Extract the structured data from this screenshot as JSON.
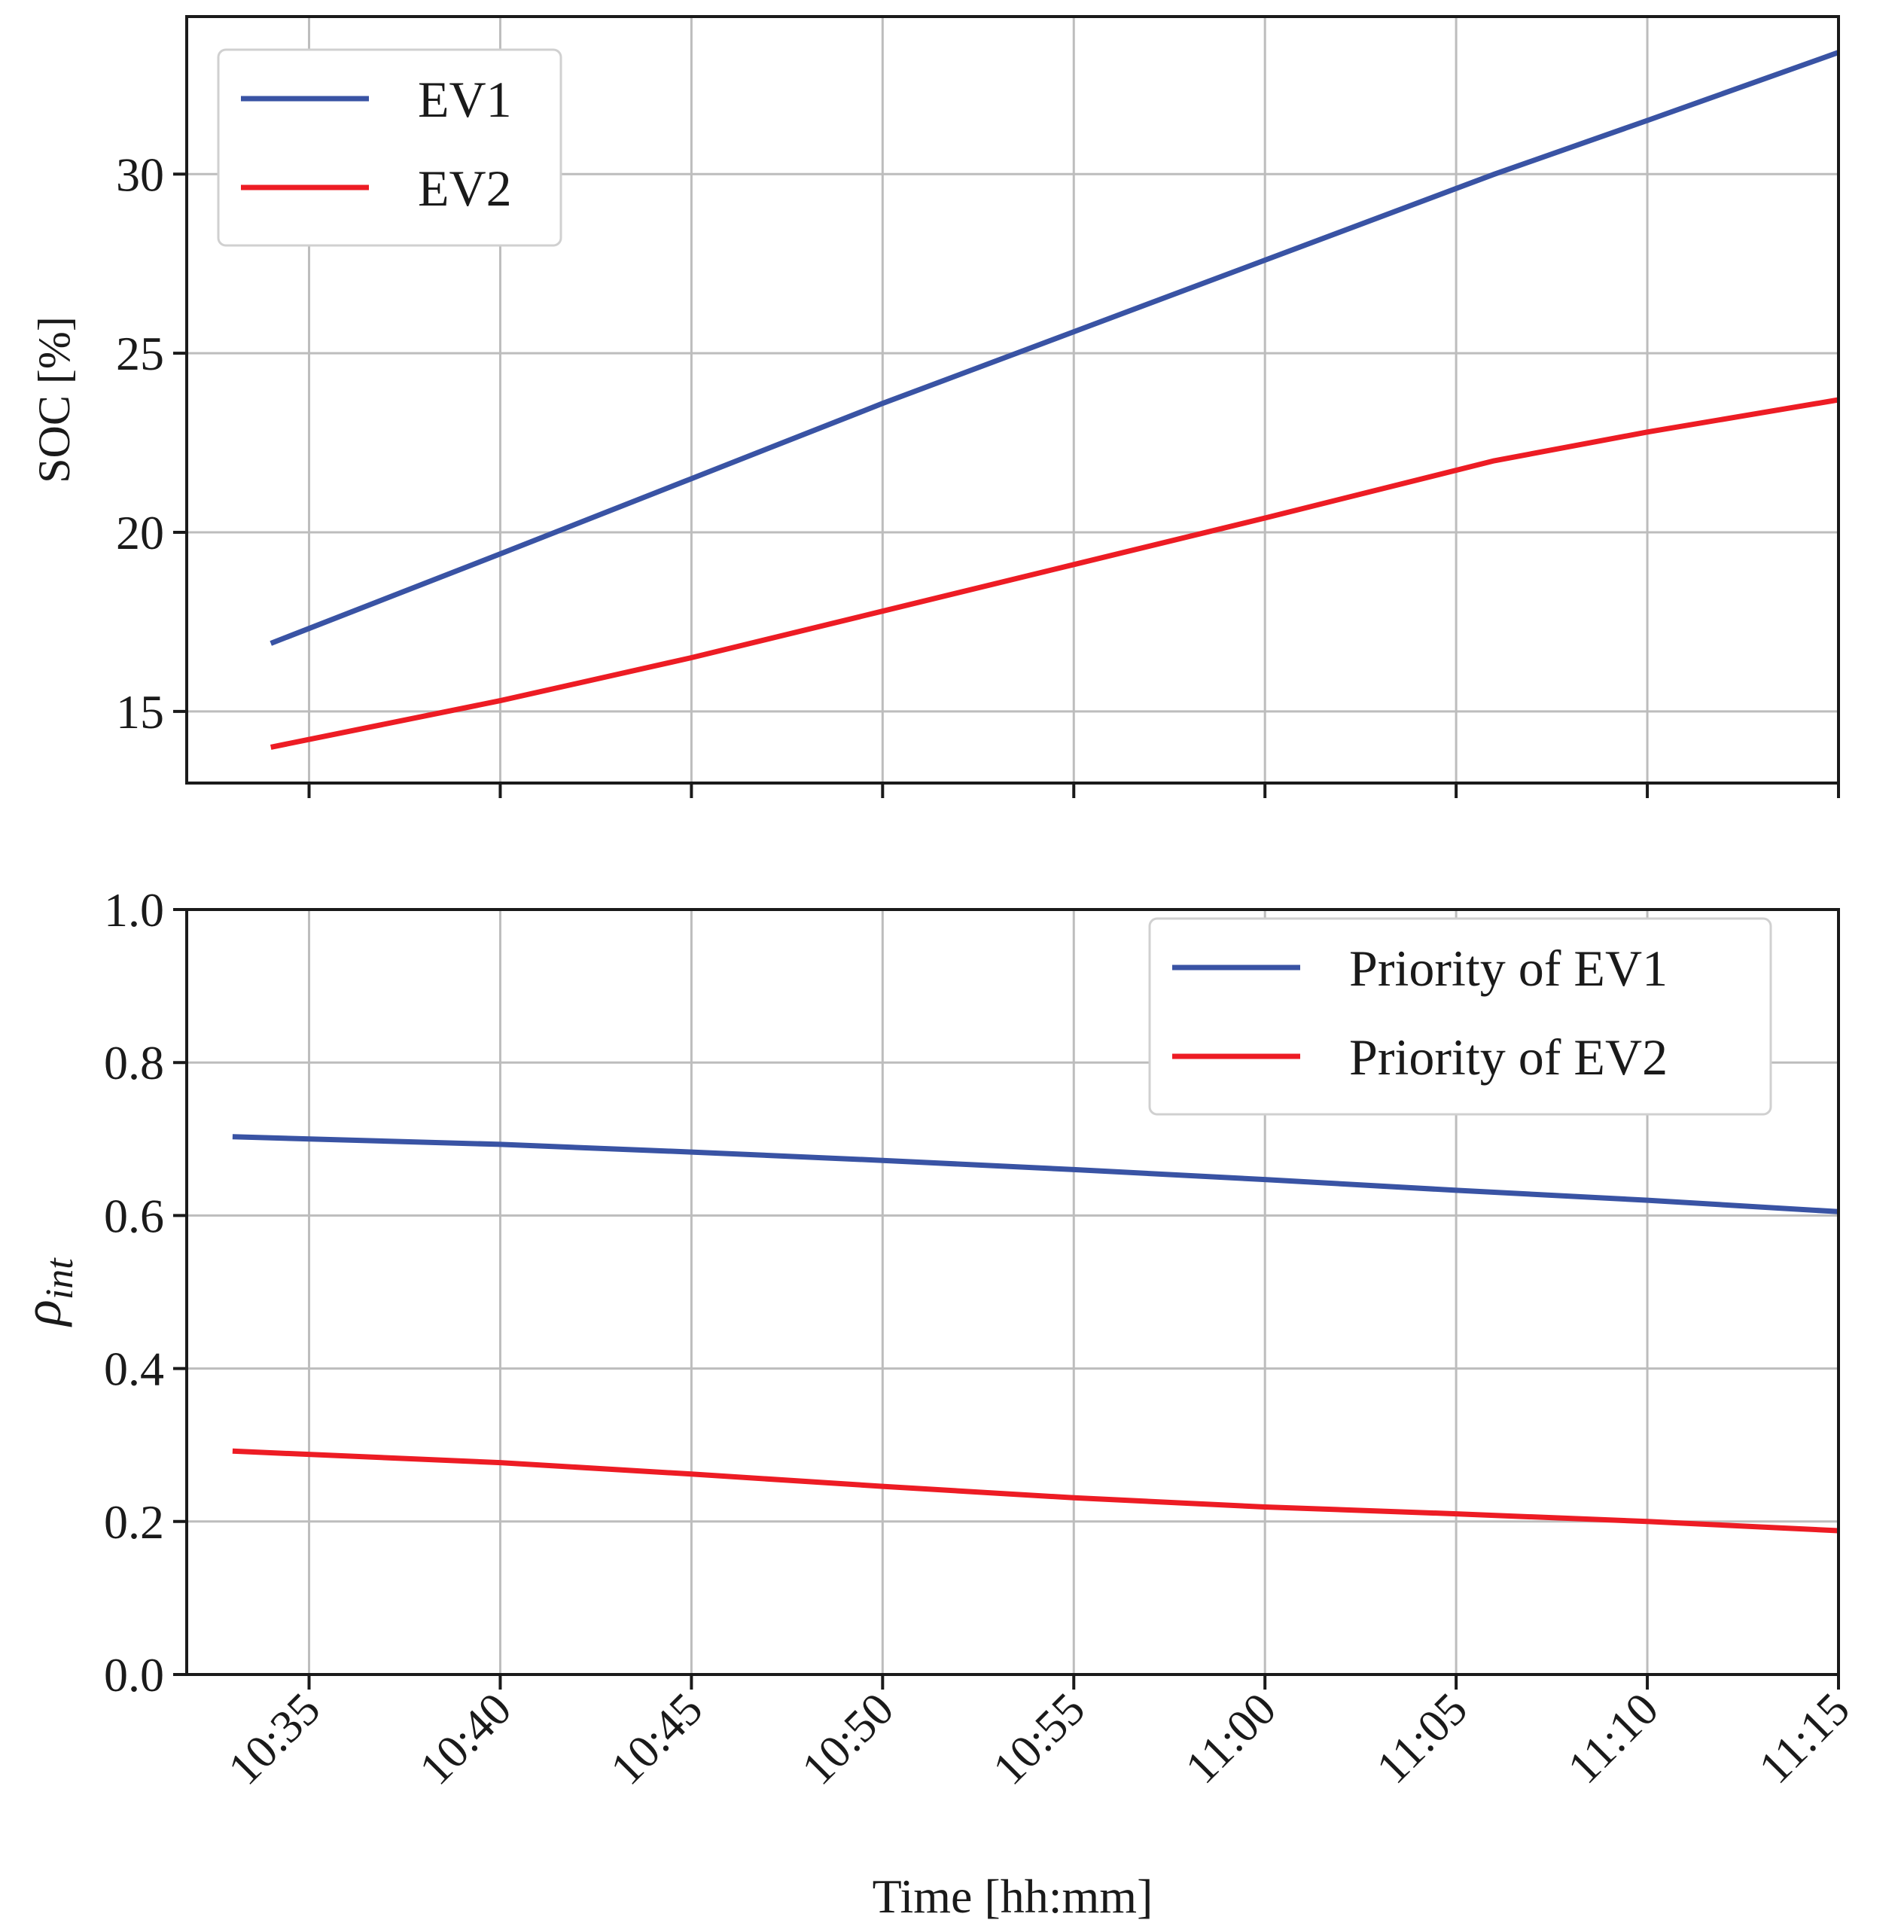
{
  "chart_data": [
    {
      "type": "line",
      "title": "",
      "xlabel": "",
      "ylabel": "SOC [%]",
      "xlim_minutes": [
        631.8,
        675
      ],
      "ylim": [
        13,
        34.4
      ],
      "grid": true,
      "legend_position": "top-left",
      "x_tick_labels": [
        "10:35",
        "10:40",
        "10:45",
        "10:50",
        "10:55",
        "11:00",
        "11:05",
        "11:10",
        "11:15"
      ],
      "x_tick_values_minutes": [
        635,
        640,
        645,
        650,
        655,
        660,
        665,
        670,
        675
      ],
      "y_ticks": [
        15,
        20,
        25,
        30
      ],
      "y_tick_labels": [
        "15",
        "20",
        "25",
        "30"
      ],
      "series": [
        {
          "name": "EV1",
          "color": "#3953a4",
          "x_minutes": [
            634,
            640,
            645,
            650,
            655,
            660,
            666,
            670,
            675
          ],
          "values": [
            16.9,
            19.4,
            21.5,
            23.6,
            25.6,
            27.6,
            30.0,
            31.5,
            33.4
          ]
        },
        {
          "name": "EV2",
          "color": "#ed1c24",
          "x_minutes": [
            634,
            640,
            645,
            650,
            655,
            660,
            666,
            670,
            675
          ],
          "values": [
            14.0,
            15.3,
            16.5,
            17.8,
            19.1,
            20.4,
            22.0,
            22.8,
            23.7
          ]
        }
      ]
    },
    {
      "type": "line",
      "title": "",
      "xlabel": "Time [hh:mm]",
      "ylabel": "ρ",
      "ylabel_subscript": "int",
      "xlim_minutes": [
        631.8,
        675
      ],
      "ylim": [
        0.0,
        1.0
      ],
      "grid": true,
      "legend_position": "top-right",
      "x_tick_labels": [
        "10:35",
        "10:40",
        "10:45",
        "10:50",
        "10:55",
        "11:00",
        "11:05",
        "11:10",
        "11:15"
      ],
      "x_tick_values_minutes": [
        635,
        640,
        645,
        650,
        655,
        660,
        665,
        670,
        675
      ],
      "y_ticks": [
        0.0,
        0.2,
        0.4,
        0.6,
        0.8,
        1.0
      ],
      "y_tick_labels": [
        "0.0",
        "0.2",
        "0.4",
        "0.6",
        "0.8",
        "1.0"
      ],
      "series": [
        {
          "name": "Priority of EV1",
          "color": "#3953a4",
          "x_minutes": [
            633,
            640,
            645,
            650,
            655,
            660,
            665,
            670,
            675
          ],
          "values": [
            0.703,
            0.693,
            0.683,
            0.672,
            0.66,
            0.647,
            0.633,
            0.62,
            0.605
          ]
        },
        {
          "name": "Priority of EV2",
          "color": "#ed1c24",
          "x_minutes": [
            633,
            640,
            645,
            650,
            655,
            660,
            665,
            670,
            675
          ],
          "values": [
            0.292,
            0.277,
            0.262,
            0.246,
            0.231,
            0.219,
            0.21,
            0.2,
            0.188
          ]
        }
      ]
    }
  ]
}
